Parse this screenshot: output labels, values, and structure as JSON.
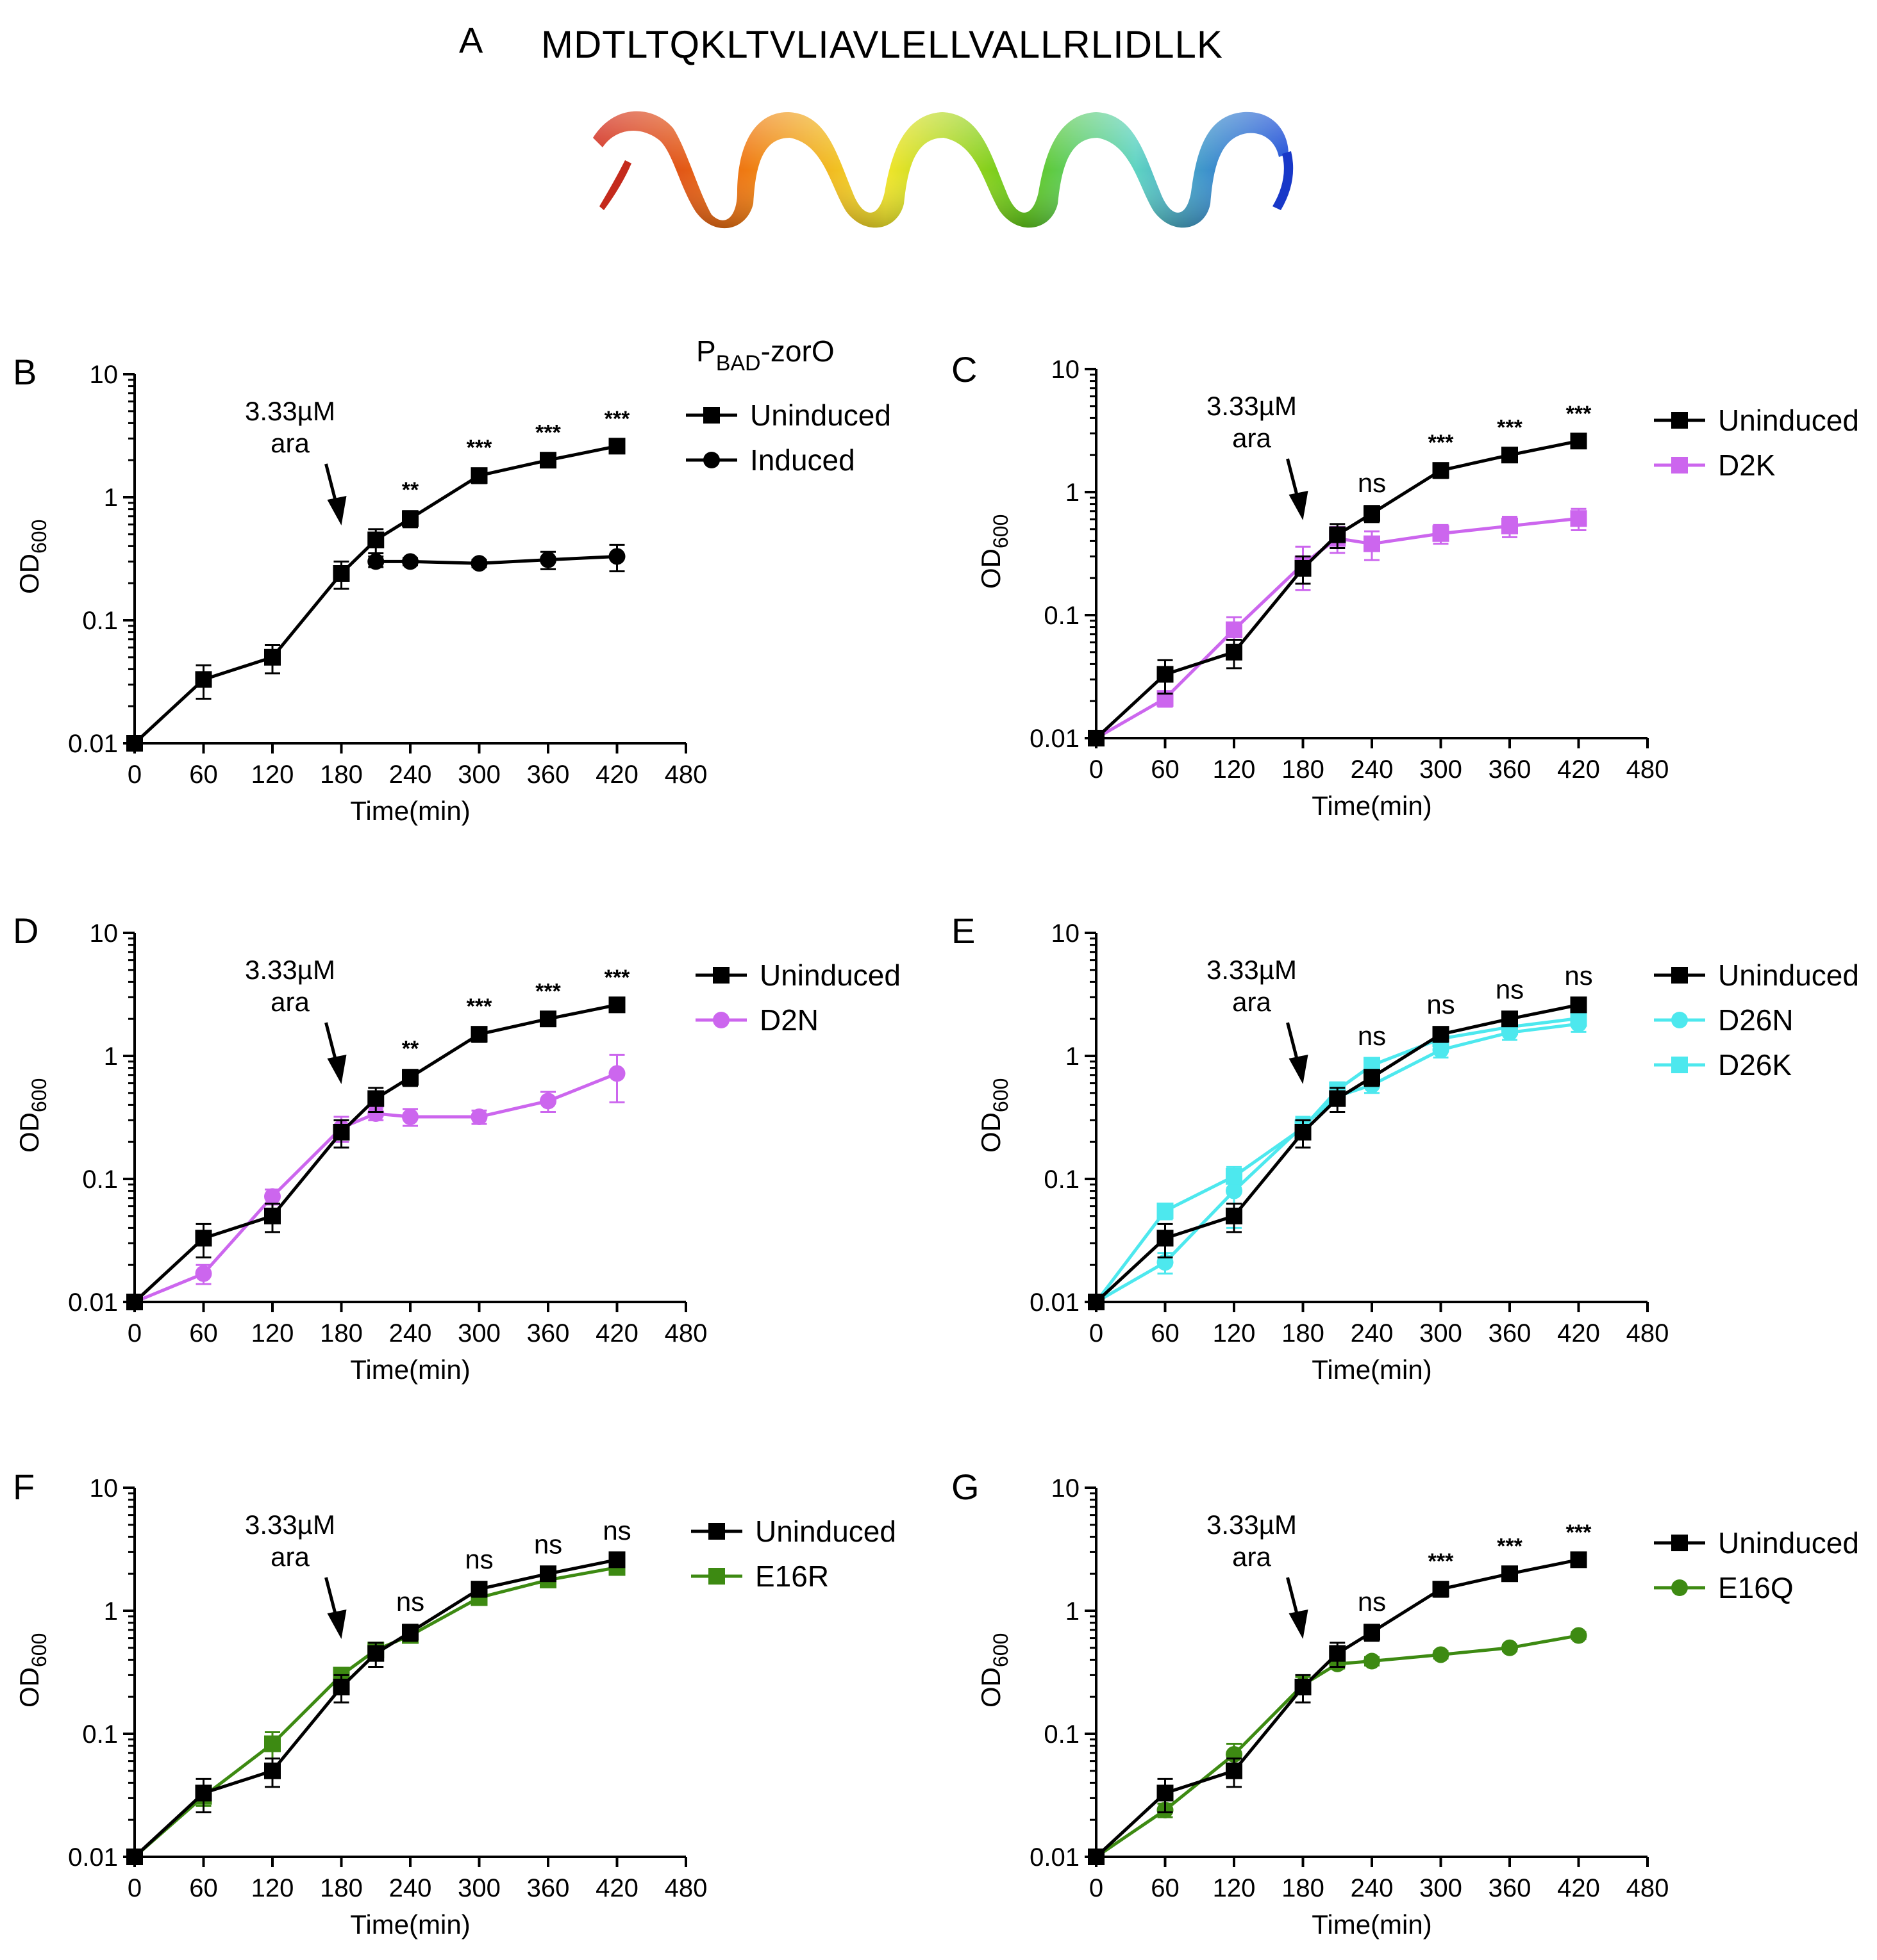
{
  "panel_a": {
    "letter": "A",
    "sequence": "MDTLTQKLTVLIAVLELLVALLRLIDLLK",
    "helix_icon": "alpha-helix-ribbon-rainbow"
  },
  "colors": {
    "uninduced": "#000000",
    "zorO_induced": "#000000",
    "D2K": "#cc66ee",
    "D2N": "#cc66ee",
    "D26N": "#4de8ee",
    "D26K": "#4de8ee",
    "E16R": "#3d8a12",
    "E16Q": "#3d8a12"
  },
  "chart_data": [
    {
      "panel": "B",
      "type": "line",
      "xlabel": "Time(min)",
      "ylabel_main": "OD",
      "ylabel_sub": "600",
      "yscale": "log",
      "ylim": [
        0.01,
        10
      ],
      "xlim": [
        0,
        480
      ],
      "x_ticks": [
        "0",
        "60",
        "120",
        "180",
        "240",
        "300",
        "360",
        "420",
        "480"
      ],
      "y_ticks": [
        "0.01",
        "0.1",
        "1",
        "10"
      ],
      "arrow_label_line1": "3.33µM",
      "arrow_label_line2": "ara",
      "arrow_x": 180,
      "legend_title_main": "P",
      "legend_title_sub": "BAD",
      "legend_title_suffix": "-zorO",
      "series": [
        {
          "name": "Uninduced",
          "color": "#000000",
          "marker": "square",
          "x": [
            0,
            60,
            120,
            180,
            210,
            240,
            300,
            360,
            420
          ],
          "y": [
            0.01,
            0.033,
            0.05,
            0.24,
            0.45,
            0.67,
            1.5,
            2.0,
            2.6
          ],
          "err": [
            0,
            0.01,
            0.013,
            0.06,
            0.1,
            0.1,
            0.2,
            0.25,
            0.3
          ]
        },
        {
          "name": "Induced",
          "color": "#000000",
          "marker": "circle",
          "x": [
            210,
            240,
            300,
            360,
            420
          ],
          "y": [
            0.3,
            0.3,
            0.29,
            0.31,
            0.33
          ],
          "err": [
            0.03,
            0.02,
            0.02,
            0.05,
            0.08
          ]
        }
      ],
      "significance": [
        {
          "x": 240,
          "label": "**"
        },
        {
          "x": 300,
          "label": "***"
        },
        {
          "x": 360,
          "label": "***"
        },
        {
          "x": 420,
          "label": "***"
        }
      ]
    },
    {
      "panel": "C",
      "type": "line",
      "xlabel": "Time(min)",
      "ylabel_main": "OD",
      "ylabel_sub": "600",
      "yscale": "log",
      "ylim": [
        0.01,
        10
      ],
      "xlim": [
        0,
        480
      ],
      "x_ticks": [
        "0",
        "60",
        "120",
        "180",
        "240",
        "300",
        "360",
        "420",
        "480"
      ],
      "y_ticks": [
        "0.01",
        "0.1",
        "1",
        "10"
      ],
      "arrow_label_line1": "3.33µM",
      "arrow_label_line2": "ara",
      "arrow_x": 180,
      "series": [
        {
          "name": "Uninduced",
          "color": "#000000",
          "marker": "square",
          "x": [
            0,
            60,
            120,
            180,
            210,
            240,
            300,
            360,
            420
          ],
          "y": [
            0.01,
            0.033,
            0.05,
            0.24,
            0.45,
            0.67,
            1.5,
            2.0,
            2.6
          ],
          "err": [
            0,
            0.01,
            0.013,
            0.06,
            0.1,
            0.1,
            0.2,
            0.25,
            0.3
          ]
        },
        {
          "name": "D2K",
          "color": "#cc66ee",
          "marker": "square",
          "x": [
            0,
            60,
            120,
            180,
            210,
            240,
            300,
            360,
            420
          ],
          "y": [
            0.01,
            0.021,
            0.076,
            0.26,
            0.42,
            0.38,
            0.46,
            0.53,
            0.61
          ],
          "err": [
            0,
            0.003,
            0.02,
            0.1,
            0.1,
            0.1,
            0.08,
            0.1,
            0.12
          ]
        }
      ],
      "significance": [
        {
          "x": 240,
          "label": "ns"
        },
        {
          "x": 300,
          "label": "***"
        },
        {
          "x": 360,
          "label": "***"
        },
        {
          "x": 420,
          "label": "***"
        }
      ]
    },
    {
      "panel": "D",
      "type": "line",
      "xlabel": "Time(min)",
      "ylabel_main": "OD",
      "ylabel_sub": "600",
      "yscale": "log",
      "ylim": [
        0.01,
        10
      ],
      "xlim": [
        0,
        480
      ],
      "x_ticks": [
        "0",
        "60",
        "120",
        "180",
        "240",
        "300",
        "360",
        "420",
        "480"
      ],
      "y_ticks": [
        "0.01",
        "0.1",
        "1",
        "10"
      ],
      "arrow_label_line1": "3.33µM",
      "arrow_label_line2": "ara",
      "arrow_x": 180,
      "series": [
        {
          "name": "Uninduced",
          "color": "#000000",
          "marker": "square",
          "x": [
            0,
            60,
            120,
            180,
            210,
            240,
            300,
            360,
            420
          ],
          "y": [
            0.01,
            0.033,
            0.05,
            0.24,
            0.45,
            0.67,
            1.5,
            2.0,
            2.6
          ],
          "err": [
            0,
            0.01,
            0.013,
            0.06,
            0.1,
            0.1,
            0.2,
            0.25,
            0.3
          ]
        },
        {
          "name": "D2N",
          "color": "#cc66ee",
          "marker": "circle",
          "x": [
            0,
            60,
            120,
            180,
            210,
            240,
            300,
            360,
            420
          ],
          "y": [
            0.01,
            0.017,
            0.072,
            0.26,
            0.34,
            0.32,
            0.32,
            0.43,
            0.72
          ],
          "err": [
            0,
            0.003,
            0.01,
            0.06,
            0.04,
            0.05,
            0.04,
            0.08,
            0.3
          ]
        }
      ],
      "significance": [
        {
          "x": 240,
          "label": "**"
        },
        {
          "x": 300,
          "label": "***"
        },
        {
          "x": 360,
          "label": "***"
        },
        {
          "x": 420,
          "label": "***"
        }
      ]
    },
    {
      "panel": "E",
      "type": "line",
      "xlabel": "Time(min)",
      "ylabel_main": "OD",
      "ylabel_sub": "600",
      "yscale": "log",
      "ylim": [
        0.01,
        10
      ],
      "xlim": [
        0,
        480
      ],
      "x_ticks": [
        "0",
        "60",
        "120",
        "180",
        "240",
        "300",
        "360",
        "420",
        "480"
      ],
      "y_ticks": [
        "0.01",
        "0.1",
        "1",
        "10"
      ],
      "arrow_label_line1": "3.33µM",
      "arrow_label_line2": "ara",
      "arrow_x": 180,
      "series": [
        {
          "name": "Uninduced",
          "color": "#000000",
          "marker": "square",
          "x": [
            0,
            60,
            120,
            180,
            210,
            240,
            300,
            360,
            420
          ],
          "y": [
            0.01,
            0.033,
            0.05,
            0.24,
            0.45,
            0.67,
            1.5,
            2.0,
            2.6
          ],
          "err": [
            0,
            0.01,
            0.013,
            0.06,
            0.1,
            0.1,
            0.2,
            0.25,
            0.3
          ]
        },
        {
          "name": "D26N",
          "color": "#4de8ee",
          "marker": "circle",
          "x": [
            0,
            60,
            120,
            180,
            210,
            240,
            300,
            360,
            420
          ],
          "y": [
            0.01,
            0.021,
            0.08,
            0.27,
            0.47,
            0.58,
            1.12,
            1.55,
            1.82
          ],
          "err": [
            0,
            0.004,
            0.04,
            0.05,
            0.07,
            0.08,
            0.15,
            0.2,
            0.25
          ]
        },
        {
          "name": "D26K",
          "color": "#4de8ee",
          "marker": "square",
          "x": [
            0,
            60,
            120,
            180,
            210,
            240,
            300,
            360,
            420
          ],
          "y": [
            0.01,
            0.055,
            0.105,
            0.26,
            0.53,
            0.84,
            1.38,
            1.72,
            2.02
          ],
          "err": [
            0,
            0.008,
            0.02,
            0.05,
            0.08,
            0.1,
            0.15,
            0.2,
            0.25
          ]
        }
      ],
      "significance": [
        {
          "x": 240,
          "label": "ns"
        },
        {
          "x": 300,
          "label": "ns"
        },
        {
          "x": 360,
          "label": "ns"
        },
        {
          "x": 420,
          "label": "ns"
        }
      ]
    },
    {
      "panel": "F",
      "type": "line",
      "xlabel": "Time(min)",
      "ylabel_main": "OD",
      "ylabel_sub": "600",
      "yscale": "log",
      "ylim": [
        0.01,
        10
      ],
      "xlim": [
        0,
        480
      ],
      "x_ticks": [
        "0",
        "60",
        "120",
        "180",
        "240",
        "300",
        "360",
        "420",
        "480"
      ],
      "y_ticks": [
        "0.01",
        "0.1",
        "1",
        "10"
      ],
      "arrow_label_line1": "3.33µM",
      "arrow_label_line2": "ara",
      "arrow_x": 180,
      "series": [
        {
          "name": "Uninduced",
          "color": "#000000",
          "marker": "square",
          "x": [
            0,
            60,
            120,
            180,
            210,
            240,
            300,
            360,
            420
          ],
          "y": [
            0.01,
            0.033,
            0.05,
            0.24,
            0.45,
            0.67,
            1.5,
            2.0,
            2.6
          ],
          "err": [
            0,
            0.01,
            0.013,
            0.06,
            0.1,
            0.1,
            0.2,
            0.25,
            0.3
          ]
        },
        {
          "name": "E16R",
          "color": "#3d8a12",
          "marker": "square",
          "x": [
            0,
            60,
            120,
            180,
            210,
            240,
            300,
            360,
            420
          ],
          "y": [
            0.01,
            0.031,
            0.083,
            0.3,
            0.48,
            0.63,
            1.28,
            1.78,
            2.25
          ],
          "err": [
            0,
            0.005,
            0.02,
            0.04,
            0.06,
            0.08,
            0.12,
            0.15,
            0.2
          ]
        }
      ],
      "significance": [
        {
          "x": 240,
          "label": "ns"
        },
        {
          "x": 300,
          "label": "ns"
        },
        {
          "x": 360,
          "label": "ns"
        },
        {
          "x": 420,
          "label": "ns"
        }
      ]
    },
    {
      "panel": "G",
      "type": "line",
      "xlabel": "Time(min)",
      "ylabel_main": "OD",
      "ylabel_sub": "600",
      "yscale": "log",
      "ylim": [
        0.01,
        10
      ],
      "xlim": [
        0,
        480
      ],
      "x_ticks": [
        "0",
        "60",
        "120",
        "180",
        "240",
        "300",
        "360",
        "420",
        "480"
      ],
      "y_ticks": [
        "0.01",
        "0.1",
        "1",
        "10"
      ],
      "arrow_label_line1": "3.33µM",
      "arrow_label_line2": "ara",
      "arrow_x": 180,
      "series": [
        {
          "name": "Uninduced",
          "color": "#000000",
          "marker": "square",
          "x": [
            0,
            60,
            120,
            180,
            210,
            240,
            300,
            360,
            420
          ],
          "y": [
            0.01,
            0.033,
            0.05,
            0.24,
            0.45,
            0.67,
            1.5,
            2.0,
            2.6
          ],
          "err": [
            0,
            0.01,
            0.013,
            0.06,
            0.1,
            0.1,
            0.2,
            0.25,
            0.3
          ]
        },
        {
          "name": "E16Q",
          "color": "#3d8a12",
          "marker": "circle",
          "x": [
            0,
            60,
            120,
            180,
            210,
            240,
            300,
            360,
            420
          ],
          "y": [
            0.01,
            0.024,
            0.068,
            0.25,
            0.37,
            0.39,
            0.44,
            0.5,
            0.63
          ],
          "err": [
            0,
            0.003,
            0.015,
            0.04,
            0.03,
            0.03,
            0.03,
            0.03,
            0.04
          ]
        }
      ],
      "significance": [
        {
          "x": 240,
          "label": "ns"
        },
        {
          "x": 300,
          "label": "***"
        },
        {
          "x": 360,
          "label": "***"
        },
        {
          "x": 420,
          "label": "***"
        }
      ]
    }
  ]
}
